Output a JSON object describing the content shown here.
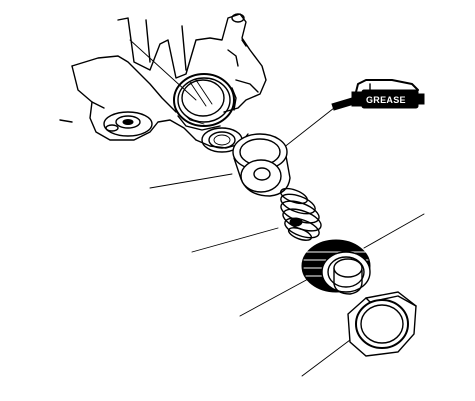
{
  "diagram": {
    "tool_label": "GREASE"
  }
}
